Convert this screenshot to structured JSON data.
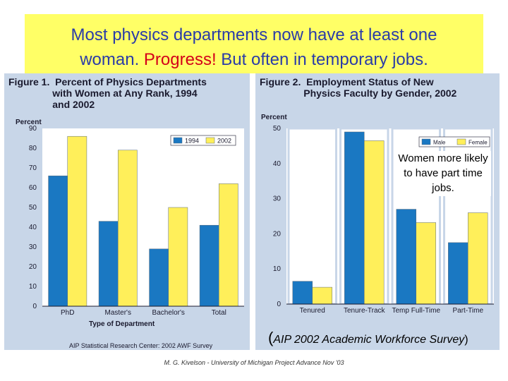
{
  "slide": {
    "title_line1": "Most physics departments now have at least one",
    "title_line2_a": "woman.  ",
    "title_line2_b": "Progress!",
    "title_line2_c": " But often in temporary jobs.",
    "annotation": "Women more likely to have part time jobs.",
    "survey_open": "(",
    "survey_text": "AIP 2002 Academic Workforce Survey",
    "survey_close": ")",
    "footer": "M. G. Kivelson - University of Michigan  Project Advance Nov '03"
  },
  "colors": {
    "blue": "#1a78c2",
    "yellow": "#ffef5a",
    "title_bg": "#ffff66",
    "panel": "#c8d6e8",
    "title_text": "#2a3ba8",
    "red": "#d4001a"
  },
  "chart_data": [
    {
      "type": "bar",
      "title": "Figure 1.  Percent of Physics Departments\n                with Women at Any Rank, 1994\n                and 2002",
      "ylabel": "Percent",
      "xlabel": "Type of Department",
      "ylim": [
        0,
        90
      ],
      "yticks": [
        0,
        10,
        20,
        30,
        40,
        50,
        60,
        70,
        80,
        90
      ],
      "categories": [
        "PhD",
        "Master's",
        "Bachelor's",
        "Total"
      ],
      "series": [
        {
          "name": "1994",
          "color": "#1a78c2",
          "values": [
            66,
            43,
            29,
            41
          ]
        },
        {
          "name": "2002",
          "color": "#ffef5a",
          "values": [
            86,
            79,
            50,
            62
          ]
        }
      ],
      "legend": "top-right",
      "source": "AIP Statistical Research Center:  2002 AWF Survey"
    },
    {
      "type": "bar",
      "title": "Figure 2.  Employment Status of New\n                Physics Faculty by Gender, 2002",
      "ylabel": "Percent",
      "xlabel": "",
      "ylim": [
        0,
        50
      ],
      "yticks": [
        0,
        10,
        20,
        30,
        40,
        50
      ],
      "categories": [
        "Tenured",
        "Tenure-Track",
        "Temp Full-Time",
        "Part-Time"
      ],
      "series": [
        {
          "name": "Male",
          "color": "#1a78c2",
          "values": [
            6.5,
            49,
            27,
            17.5
          ]
        },
        {
          "name": "Female",
          "color": "#ffef5a",
          "values": [
            4.8,
            46.5,
            23.2,
            26
          ]
        }
      ],
      "legend": "top-right"
    }
  ]
}
